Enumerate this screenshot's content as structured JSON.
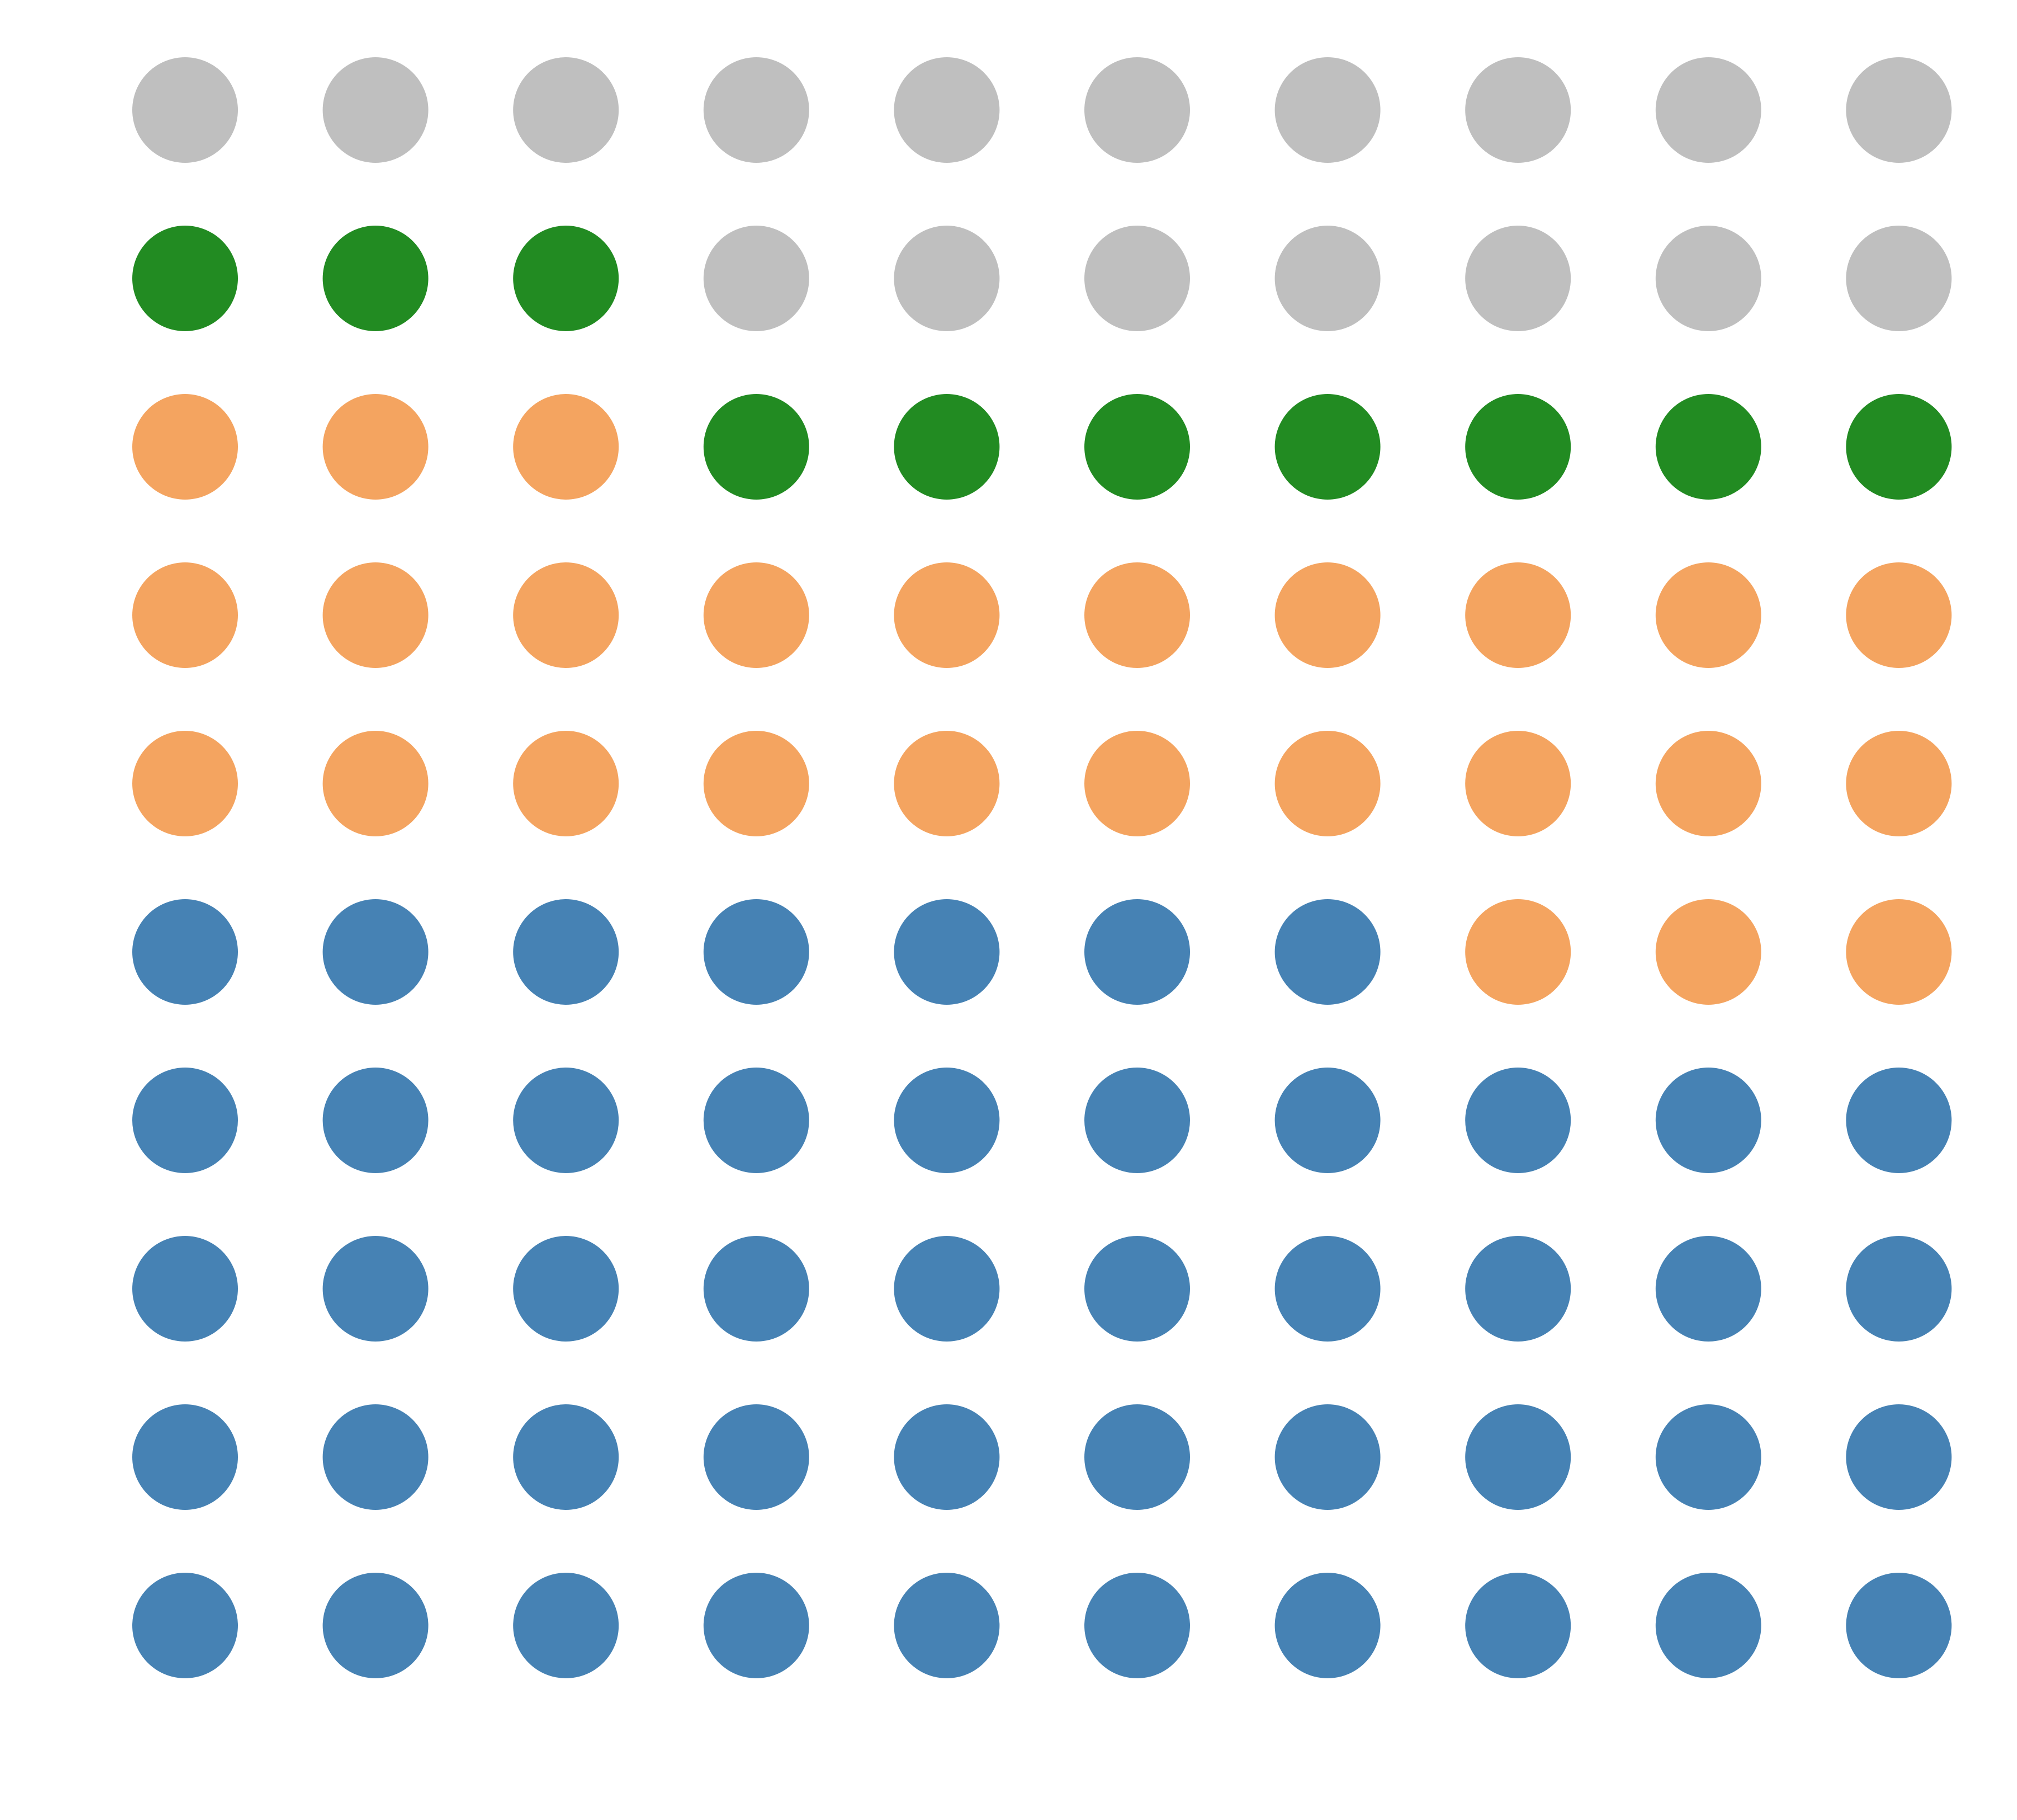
{
  "chart_data": {
    "type": "waffle",
    "values": [
      47,
      26,
      10,
      17
    ],
    "colors": [
      "#4682b4",
      "#f4a460",
      "#228b22",
      "#bfbfbf"
    ]
  }
}
